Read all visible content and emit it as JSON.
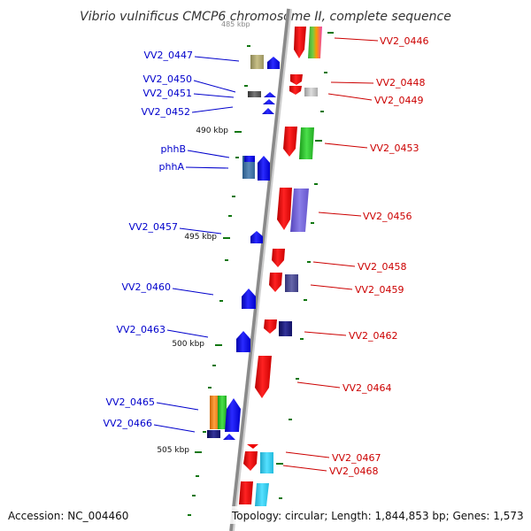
{
  "title": "Vibrio vulnificus CMCP6 chromosome II, complete sequence",
  "footer": {
    "accession": "Accession: NC_004460",
    "summary": "Topology: circular; Length: 1,844,853 bp; Genes: 1,573"
  },
  "scale": {
    "faint_top": "485 kbp",
    "k490": "490 kbp",
    "k495": "495 kbp",
    "k500": "500 kbp",
    "k505": "505 kbp"
  },
  "colors": {
    "forward": "#ee0000",
    "reverse": "#0000ee",
    "backbone": "#999999",
    "tick": "#117711"
  },
  "labels_left": [
    {
      "id": "VV2_0447",
      "text": "VV2_0447"
    },
    {
      "id": "VV2_0450",
      "text": "VV2_0450"
    },
    {
      "id": "VV2_0451",
      "text": "VV2_0451"
    },
    {
      "id": "VV2_0452",
      "text": "VV2_0452"
    },
    {
      "id": "phhB",
      "text": "phhB"
    },
    {
      "id": "phhA",
      "text": "phhA"
    },
    {
      "id": "VV2_0457",
      "text": "VV2_0457"
    },
    {
      "id": "VV2_0460",
      "text": "VV2_0460"
    },
    {
      "id": "VV2_0463",
      "text": "VV2_0463"
    },
    {
      "id": "VV2_0465",
      "text": "VV2_0465"
    },
    {
      "id": "VV2_0466",
      "text": "VV2_0466"
    }
  ],
  "labels_right": [
    {
      "id": "VV2_0446",
      "text": "VV2_0446"
    },
    {
      "id": "VV2_0448",
      "text": "VV2_0448"
    },
    {
      "id": "VV2_0449",
      "text": "VV2_0449"
    },
    {
      "id": "VV2_0453",
      "text": "VV2_0453"
    },
    {
      "id": "VV2_0456",
      "text": "VV2_0456"
    },
    {
      "id": "VV2_0458",
      "text": "VV2_0458"
    },
    {
      "id": "VV2_0459",
      "text": "VV2_0459"
    },
    {
      "id": "VV2_0462",
      "text": "VV2_0462"
    },
    {
      "id": "VV2_0464",
      "text": "VV2_0464"
    },
    {
      "id": "VV2_0467",
      "text": "VV2_0467"
    },
    {
      "id": "VV2_0468",
      "text": "VV2_0468"
    }
  ]
}
